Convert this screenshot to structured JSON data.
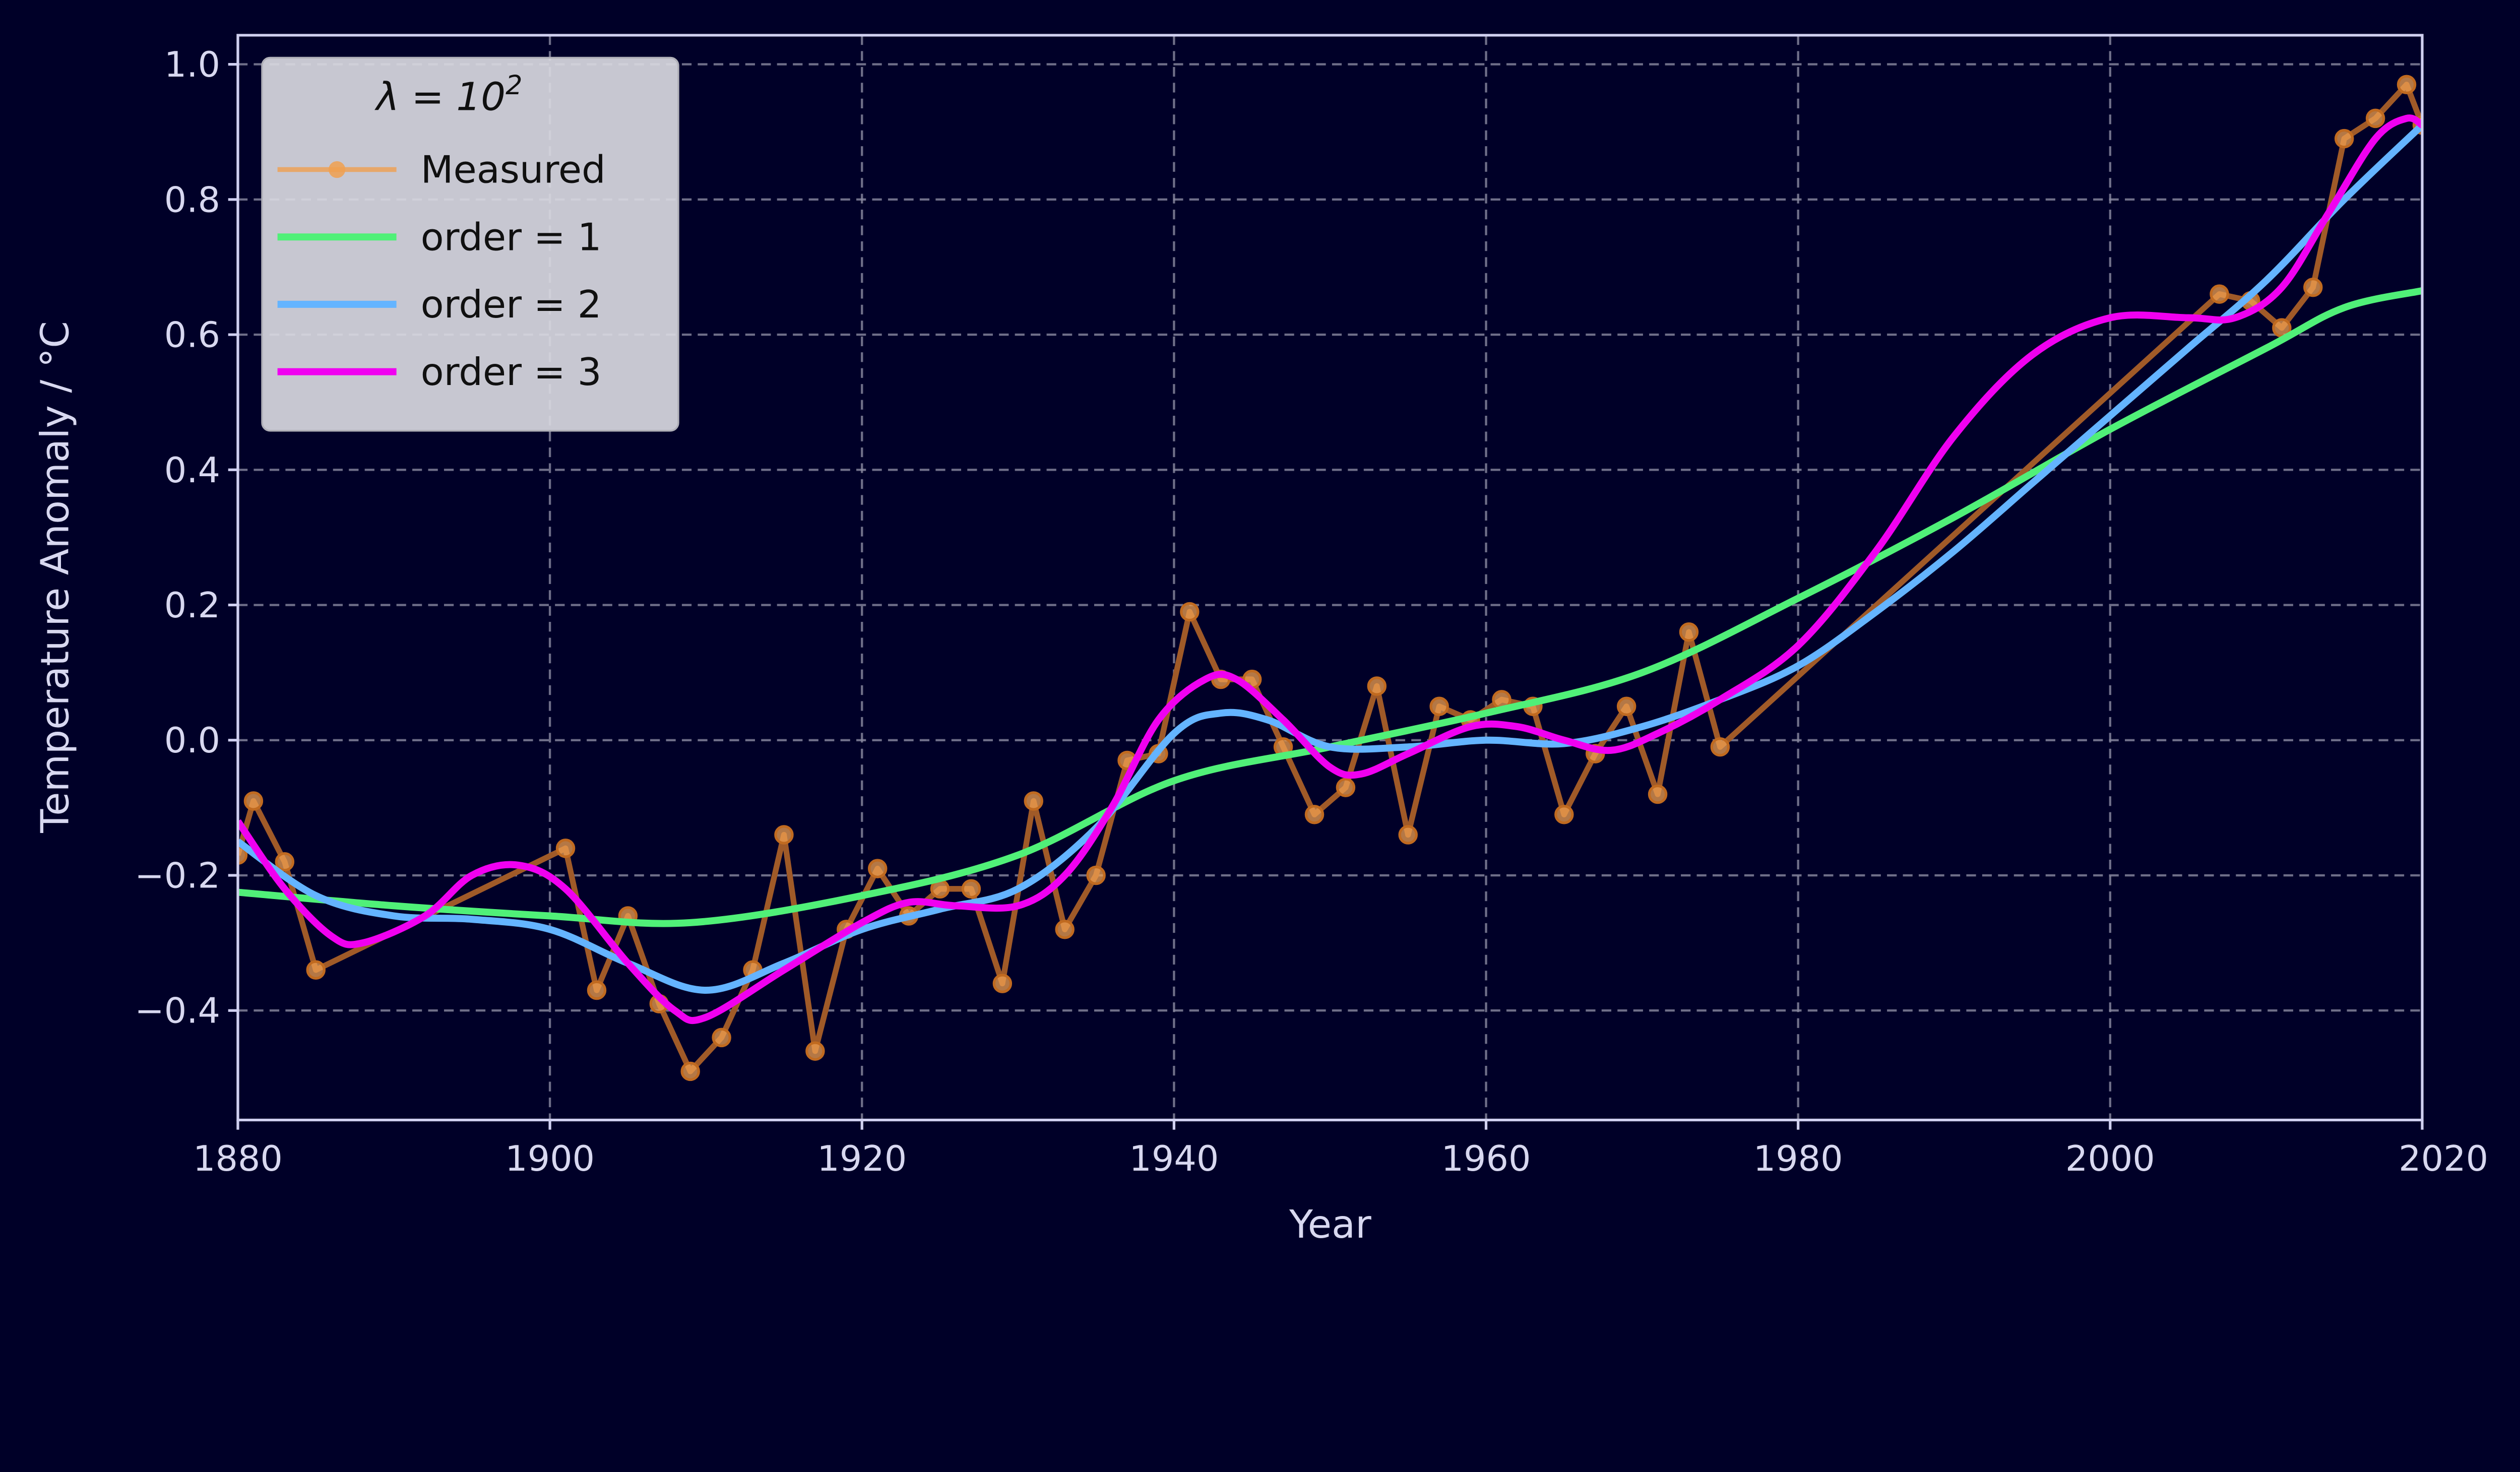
{
  "chart_data": {
    "type": "line",
    "title": "",
    "xlabel": "Year",
    "ylabel": "Temperature Anomaly / °C",
    "xlim": [
      1880,
      2020
    ],
    "ylim": [
      -0.562,
      1.043
    ],
    "xticks": [
      "1880",
      "1900",
      "1920",
      "1940",
      "1960",
      "1980",
      "2000",
      "2020"
    ],
    "yticks": [
      "−0.4",
      "−0.2",
      "0.0",
      "0.2",
      "0.4",
      "0.6",
      "0.8",
      "1.0"
    ],
    "ytick_values": [
      -0.4,
      -0.2,
      0,
      0.2,
      0.4,
      0.6,
      0.8,
      1.0
    ],
    "xtick_values": [
      1880,
      1900,
      1920,
      1940,
      1960,
      1980,
      2000,
      2020
    ],
    "grid": true,
    "legend": {
      "title": "λ = 10",
      "title_exponent": "2",
      "placement": "top-left"
    },
    "series": [
      {
        "name": "Measured",
        "color": "#f0a050",
        "line_color": "#a05a28",
        "markers": true,
        "x": [
          1880,
          1881,
          1883,
          1885,
          1901,
          1903,
          1905,
          1907,
          1909,
          1911,
          1913,
          1915,
          1917,
          1919,
          1921,
          1923,
          1925,
          1927,
          1929,
          1931,
          1933,
          1935,
          1937,
          1939,
          1941,
          1943,
          1945,
          1947,
          1949,
          1951,
          1953,
          1955,
          1957,
          1959,
          1961,
          1963,
          1965,
          1967,
          1969,
          1971,
          1973,
          1975,
          2007,
          2009,
          2011,
          2013,
          2015,
          2017,
          2019,
          2020
        ],
        "y": [
          -0.17,
          -0.09,
          -0.18,
          -0.34,
          -0.16,
          -0.37,
          -0.26,
          -0.39,
          -0.49,
          -0.44,
          -0.34,
          -0.14,
          -0.46,
          -0.28,
          -0.19,
          -0.26,
          -0.22,
          -0.22,
          -0.36,
          -0.09,
          -0.28,
          -0.2,
          -0.03,
          -0.02,
          0.19,
          0.09,
          0.09,
          -0.01,
          -0.11,
          -0.07,
          0.08,
          -0.14,
          0.05,
          0.03,
          0.06,
          0.05,
          -0.11,
          -0.02,
          0.05,
          -0.08,
          0.16,
          -0.01,
          0.66,
          0.65,
          0.61,
          0.67,
          0.89,
          0.92,
          0.97,
          0.91
        ]
      },
      {
        "name": "order = 1",
        "color": "#50f078",
        "x": [
          1880,
          1890,
          1900,
          1909,
          1920,
          1930,
          1940,
          1950,
          1960,
          1970,
          1980,
          1990,
          2000,
          2010,
          2015,
          2020
        ],
        "y": [
          -0.225,
          -0.245,
          -0.26,
          -0.27,
          -0.23,
          -0.17,
          -0.06,
          -0.01,
          0.04,
          0.1,
          0.21,
          0.33,
          0.46,
          0.58,
          0.64,
          0.665
        ]
      },
      {
        "name": "order = 2",
        "color": "#64b4ff",
        "x": [
          1880,
          1885,
          1890,
          1895,
          1900,
          1905,
          1910,
          1915,
          1920,
          1925,
          1930,
          1935,
          1940,
          1943,
          1946,
          1950,
          1955,
          1960,
          1965,
          1970,
          1975,
          1980,
          1985,
          1990,
          1995,
          2000,
          2005,
          2010,
          2015,
          2020
        ],
        "y": [
          -0.15,
          -0.23,
          -0.26,
          -0.265,
          -0.28,
          -0.33,
          -0.37,
          -0.33,
          -0.28,
          -0.25,
          -0.22,
          -0.13,
          0.01,
          0.04,
          0.03,
          -0.01,
          -0.01,
          0.0,
          -0.005,
          0.02,
          0.06,
          0.11,
          0.19,
          0.28,
          0.38,
          0.48,
          0.58,
          0.68,
          0.8,
          0.91
        ]
      },
      {
        "name": "order = 3",
        "color": "#f000f0",
        "x": [
          1880,
          1883,
          1886,
          1888,
          1892,
          1895,
          1898,
          1901,
          1905,
          1908,
          1910,
          1915,
          1920,
          1923,
          1926,
          1930,
          1933,
          1936,
          1939,
          1942,
          1944,
          1947,
          1950,
          1952,
          1955,
          1959,
          1962,
          1965,
          1968,
          1971,
          1975,
          1980,
          1985,
          1990,
          1995,
          2000,
          2005,
          2008,
          2011,
          2014,
          2017,
          2019,
          2020
        ],
        "y": [
          -0.12,
          -0.22,
          -0.29,
          -0.3,
          -0.26,
          -0.2,
          -0.185,
          -0.22,
          -0.33,
          -0.4,
          -0.41,
          -0.34,
          -0.27,
          -0.24,
          -0.245,
          -0.245,
          -0.2,
          -0.1,
          0.03,
          0.09,
          0.09,
          0.03,
          -0.04,
          -0.05,
          -0.02,
          0.02,
          0.02,
          0.0,
          -0.015,
          0.01,
          0.06,
          0.14,
          0.28,
          0.45,
          0.57,
          0.625,
          0.625,
          0.625,
          0.67,
          0.78,
          0.89,
          0.92,
          0.91
        ]
      }
    ]
  }
}
